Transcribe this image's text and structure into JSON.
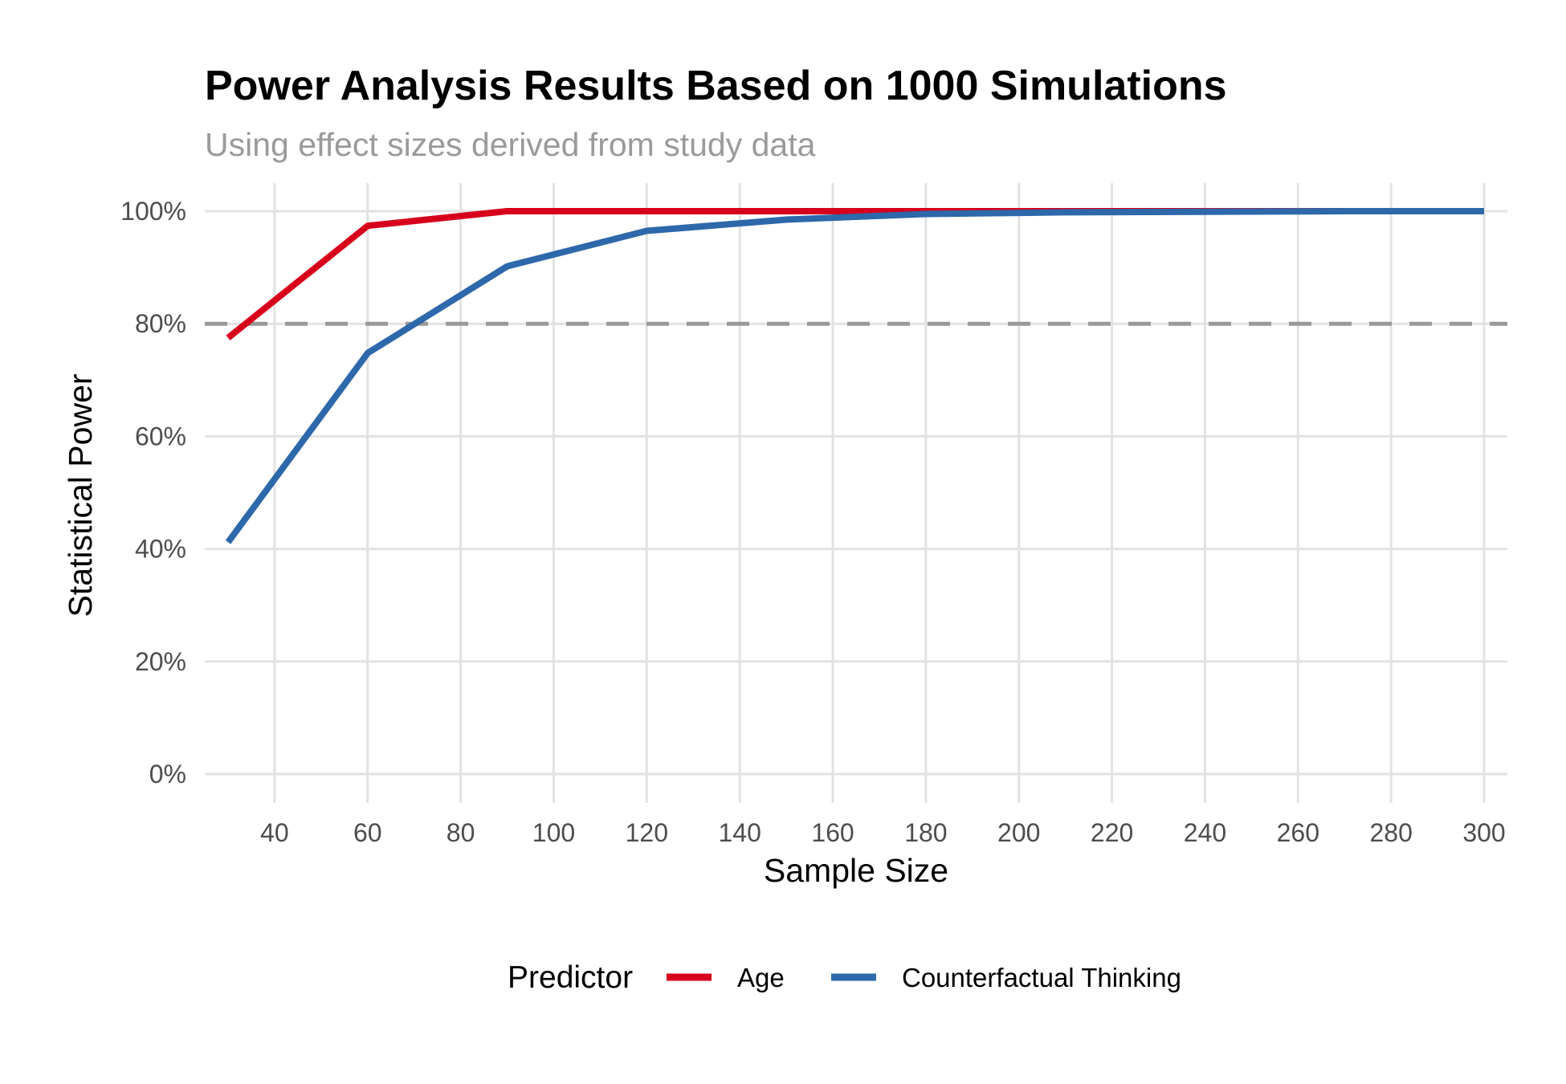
{
  "chart_data": {
    "type": "line",
    "title": "Power Analysis Results Based on 1000 Simulations",
    "subtitle": "Using effect sizes derived from study data",
    "xlabel": "Sample Size",
    "ylabel": "Statistical Power",
    "xlim": [
      25,
      305
    ],
    "ylim": [
      0,
      1
    ],
    "x_ticks": [
      40,
      60,
      80,
      100,
      120,
      140,
      160,
      180,
      200,
      220,
      240,
      260,
      280,
      300
    ],
    "y_ticks": [
      0,
      0.2,
      0.4,
      0.6,
      0.8,
      1.0
    ],
    "y_tick_labels": [
      "0%",
      "20%",
      "40%",
      "60%",
      "80%",
      "100%"
    ],
    "grid": true,
    "reference_line": {
      "y": 0.8,
      "style": "dashed",
      "color": "#999999"
    },
    "legend": {
      "title": "Predictor",
      "position": "bottom"
    },
    "x": [
      30,
      60,
      90,
      120,
      150,
      180,
      210,
      240,
      270,
      300
    ],
    "series": [
      {
        "name": "Age",
        "color": "#D7001C",
        "values": [
          0.775,
          0.974,
          1.0,
          1.0,
          1.0,
          1.0,
          1.0,
          1.0,
          1.0,
          1.0
        ]
      },
      {
        "name": "Counterfactual Thinking",
        "color": "#2D68AA",
        "values": [
          0.412,
          0.748,
          0.902,
          0.965,
          0.985,
          0.995,
          0.998,
          0.999,
          1.0,
          1.0
        ]
      }
    ]
  }
}
